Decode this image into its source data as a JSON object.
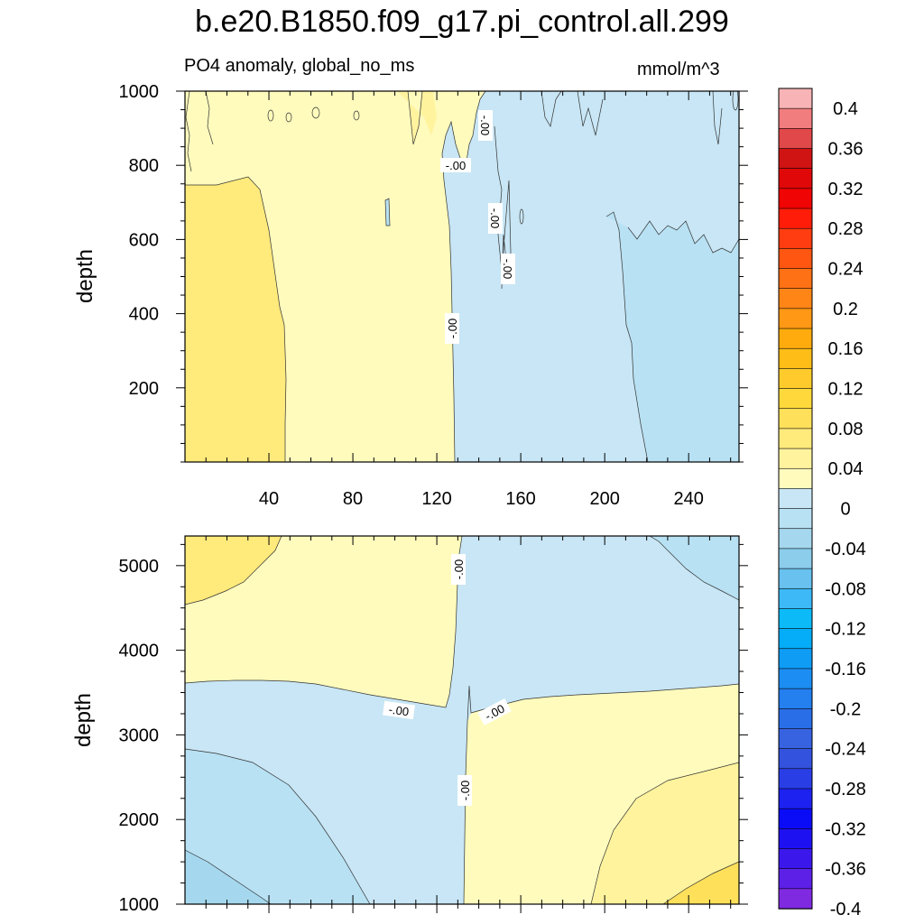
{
  "chart_data": {
    "type": "heatmap",
    "title": "b.e20.B1850.f09_g17.pi_control.all.299",
    "subtitle_left": "PO4 anomaly, global_no_ms",
    "subtitle_right": "mmol/m^3",
    "xlabel": "",
    "xticks": [
      40,
      80,
      120,
      160,
      200,
      240
    ],
    "xlim": [
      0,
      264
    ],
    "panels": [
      {
        "ylabel": "depth",
        "ylim": [
          1000,
          0
        ],
        "yticks": [
          200,
          400,
          600,
          800,
          1000
        ],
        "contour_labels": [
          "-.00",
          "-.00",
          "-.00",
          "-.00",
          "-.00"
        ],
        "regions": [
          {
            "x_range": [
              0,
              48
            ],
            "value_range": [
              0.04,
              0.06
            ]
          },
          {
            "x_range": [
              48,
              128
            ],
            "value_range": [
              0,
              0.02
            ]
          },
          {
            "x_range": [
              128,
              200
            ],
            "value_range": [
              -0.02,
              0
            ]
          },
          {
            "x_range": [
              200,
              264
            ],
            "value_range": [
              -0.04,
              -0.02
            ]
          }
        ]
      },
      {
        "ylabel": "depth",
        "ylim": [
          5350,
          1000
        ],
        "yticks": [
          1000,
          2000,
          3000,
          4000,
          5000
        ],
        "contour_labels": [
          "-.00",
          "-.00",
          "-.00",
          "-.00"
        ],
        "regions": [
          {
            "x_range": [
              0,
              130
            ],
            "depth_range": [
              1000,
              3000
            ],
            "value_range": [
              0,
              0.02
            ]
          },
          {
            "x_range": [
              130,
              264
            ],
            "depth_range": [
              1000,
              2900
            ],
            "value_range": [
              -0.02,
              0
            ]
          },
          {
            "x_range": [
              0,
              130
            ],
            "depth_range": [
              3000,
              5350
            ],
            "value_range": [
              -0.04,
              0
            ]
          },
          {
            "x_range": [
              130,
              264
            ],
            "depth_range": [
              2900,
              5350
            ],
            "value_range": [
              0,
              0.06
            ]
          }
        ]
      }
    ],
    "colorbar": {
      "labels": [
        "0.4",
        "0.36",
        "0.32",
        "0.28",
        "0.24",
        "0.2",
        "0.16",
        "0.12",
        "0.08",
        "0.04",
        "0",
        "-0.04",
        "-0.08",
        "-0.12",
        "-0.16",
        "-0.2",
        "-0.24",
        "-0.28",
        "-0.32",
        "-0.36",
        "-0.4"
      ],
      "colors": [
        "#f7b3b5",
        "#f17d7f",
        "#e0484a",
        "#d01313",
        "#e00808",
        "#f00404",
        "#ff1d0a",
        "#ff3d10",
        "#ff5612",
        "#ff7115",
        "#ff8616",
        "#ff9814",
        "#ffab0e",
        "#ffbd17",
        "#ffcb2c",
        "#ffd93b",
        "#ffe05b",
        "#ffea7c",
        "#fff39e",
        "#fffbbd",
        "#c8e6f5",
        "#b8e1f3",
        "#a5d8ee",
        "#8ccdec",
        "#69c1ef",
        "#3cb9f6",
        "#0cbaf8",
        "#05acf8",
        "#0f9cf5",
        "#1c8ef3",
        "#247fef",
        "#296ee7",
        "#3762e0",
        "#3352dd",
        "#2a3ee6",
        "#1d22f0",
        "#0b0cf7",
        "#1e11f1",
        "#3b17ec",
        "#5c20e6",
        "#7f2ae1"
      ]
    },
    "colors": {
      "pos1": "#fffbbd",
      "pos2": "#fff39e",
      "pos3": "#ffea7c",
      "pos4": "#ffe05b",
      "neg1": "#c8e6f5",
      "neg2": "#b8e1f3",
      "neg3": "#a5d8ee"
    }
  }
}
